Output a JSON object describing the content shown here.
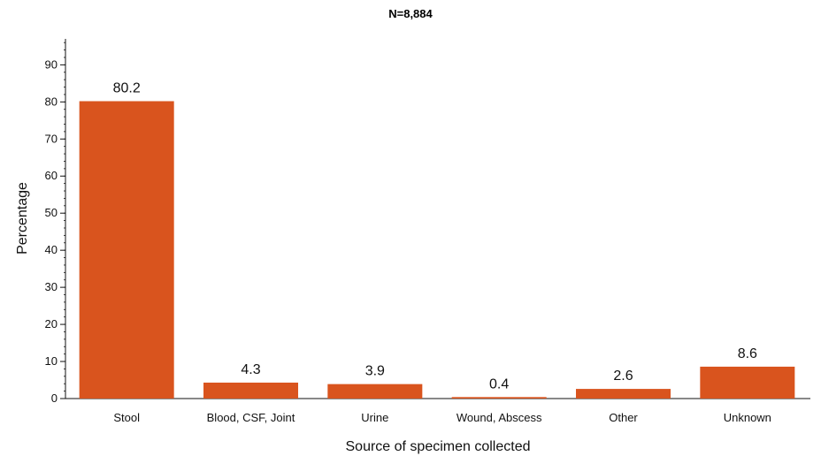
{
  "chart_data": {
    "type": "bar",
    "subtitle": "N=8,884",
    "categories": [
      "Stool",
      "Blood, CSF, Joint",
      "Urine",
      "Wound, Abscess",
      "Other",
      "Unknown"
    ],
    "values": [
      80.2,
      4.3,
      3.9,
      0.4,
      2.6,
      8.6
    ],
    "data_labels": [
      "80.2",
      "4.3",
      "3.9",
      "0.4",
      "2.6",
      "8.6"
    ],
    "xlabel": "Source of specimen collected",
    "ylabel": "Percentage",
    "ylim": [
      0,
      97
    ],
    "yticks": [
      0,
      10,
      20,
      30,
      40,
      50,
      60,
      70,
      80,
      90
    ],
    "grid": false,
    "bar_color": "#d9541e"
  }
}
